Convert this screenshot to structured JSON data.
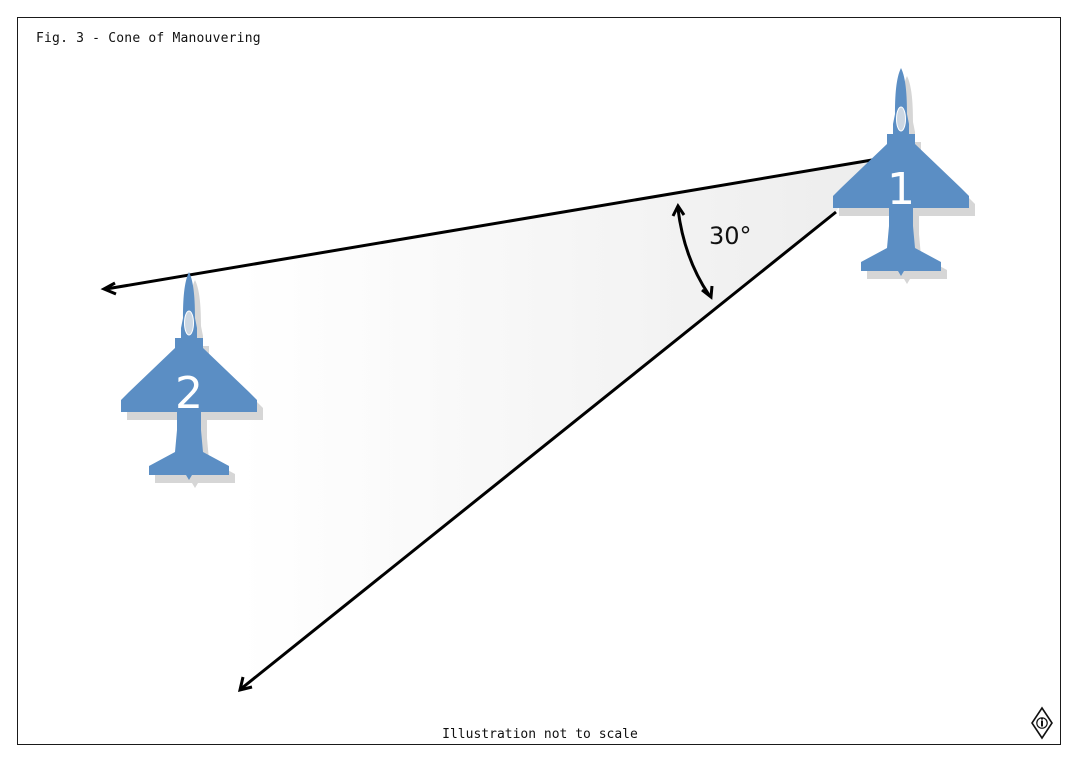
{
  "figure": {
    "title": "Fig. 3 - Cone of Manouvering",
    "footnote": "Illustration not to scale"
  },
  "cone": {
    "angle_label": "30°",
    "fill_color": "#f2f2f2",
    "line_color": "#000000"
  },
  "aircraft": [
    {
      "number": "1",
      "color": "#5b8ec4",
      "shadow_color": "#d6d6d6"
    },
    {
      "number": "2",
      "color": "#5b8ec4",
      "shadow_color": "#d6d6d6"
    }
  ],
  "icons": {
    "corner_logo": "info-diamond-icon"
  }
}
